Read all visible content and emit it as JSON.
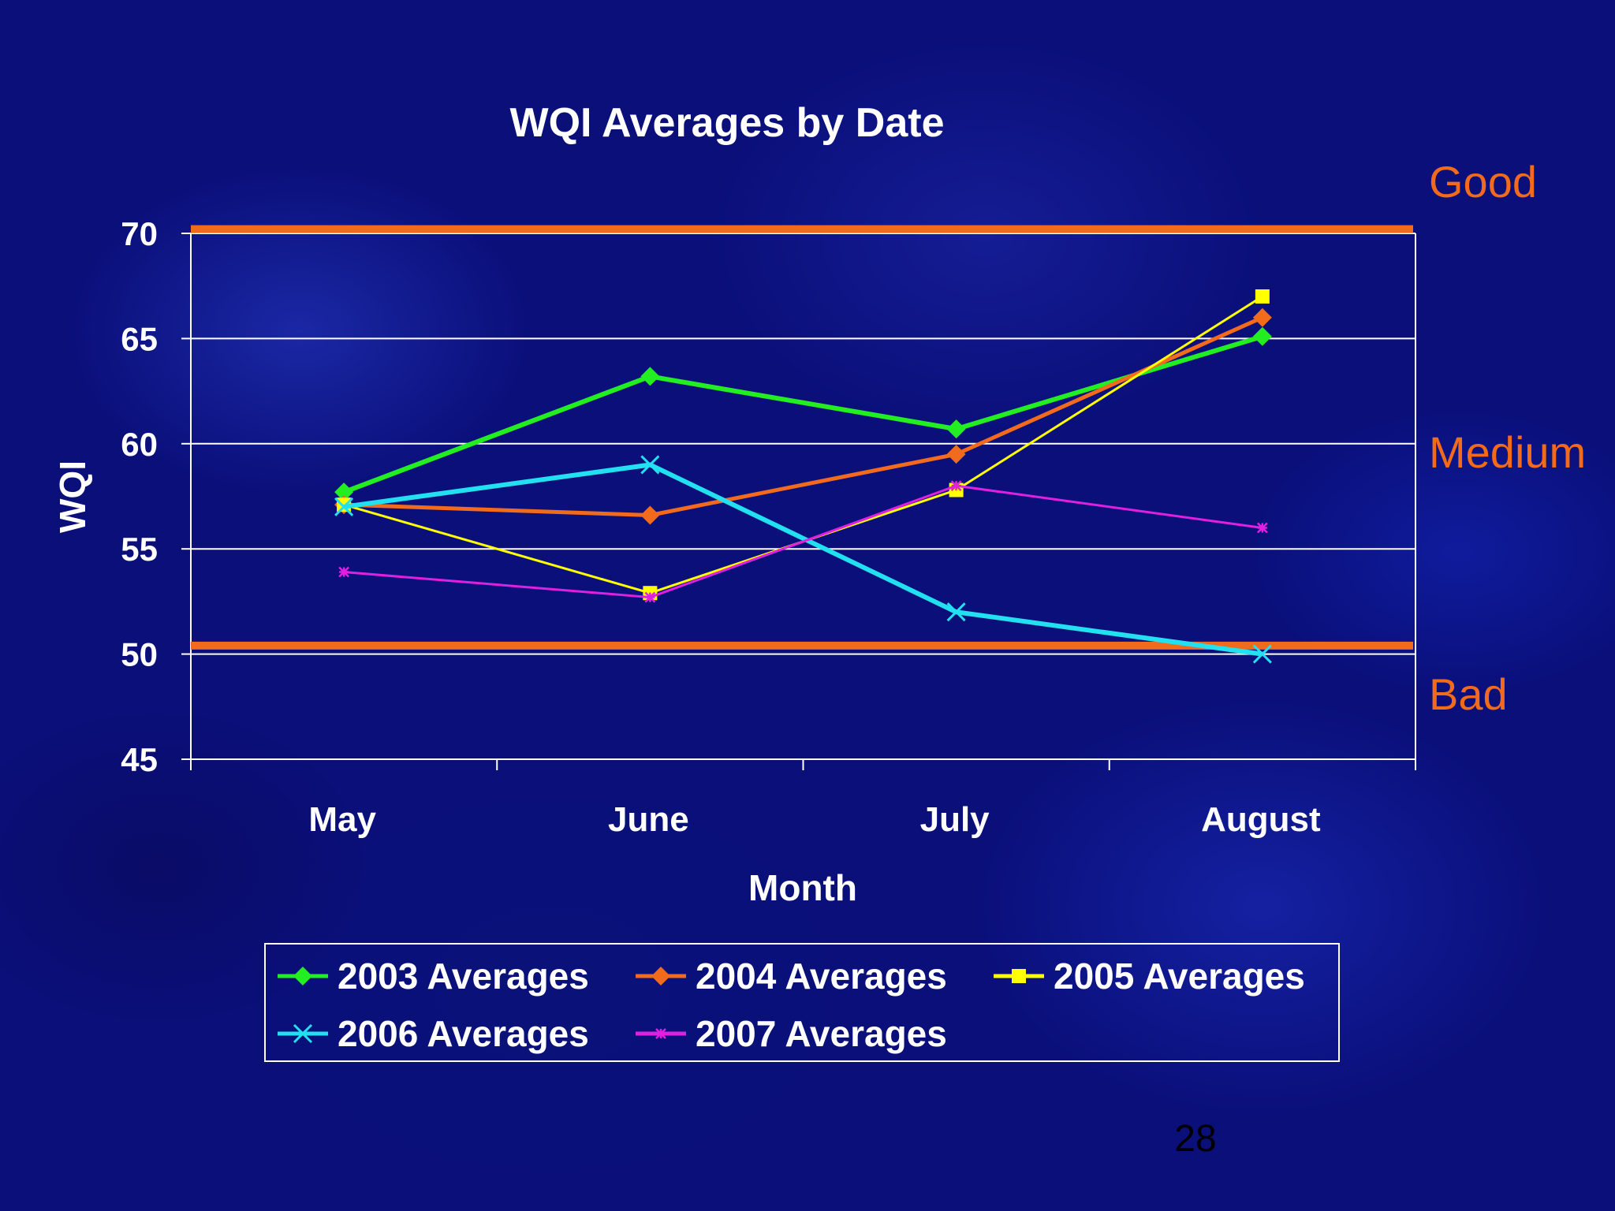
{
  "slide": {
    "page_number": "28"
  },
  "chart_data": {
    "type": "line",
    "title": "WQI Averages by Date",
    "xlabel": "Month",
    "ylabel": "WQI",
    "categories": [
      "May",
      "June",
      "July",
      "August"
    ],
    "ylim": [
      45,
      70
    ],
    "yticks": [
      "45",
      "50",
      "55",
      "60",
      "65",
      "70"
    ],
    "grid": true,
    "legend_position": "bottom",
    "series": [
      {
        "name": "2003 Averages",
        "values": [
          57.7,
          63.2,
          60.7,
          65.1
        ],
        "color": "#22ee22",
        "marker": "diamond"
      },
      {
        "name": "2004 Averages",
        "values": [
          57.1,
          56.6,
          59.5,
          66.0
        ],
        "color": "#f26a1b",
        "marker": "diamond"
      },
      {
        "name": "2005 Averages",
        "values": [
          57.1,
          52.9,
          57.8,
          67.0
        ],
        "color": "#ffff00",
        "marker": "square"
      },
      {
        "name": "2006 Averages",
        "values": [
          57.0,
          59.0,
          52.0,
          50.0
        ],
        "color": "#22e0f0",
        "marker": "x"
      },
      {
        "name": "2007 Averages",
        "values": [
          53.9,
          52.7,
          58.0,
          56.0
        ],
        "color": "#e020e0",
        "marker": "star"
      }
    ],
    "reference_lines": [
      {
        "value": 70.2,
        "color": "#f26a1b"
      },
      {
        "value": 50.4,
        "color": "#f26a1b"
      }
    ],
    "band_labels": [
      "Good",
      "Medium",
      "Bad"
    ]
  }
}
